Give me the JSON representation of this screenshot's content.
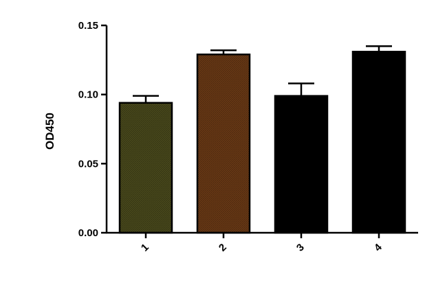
{
  "chart_data": {
    "type": "bar",
    "title": "",
    "xlabel": "",
    "ylabel": "OD450",
    "categories": [
      "1",
      "2",
      "3",
      "4"
    ],
    "values": [
      0.094,
      0.129,
      0.099,
      0.131
    ],
    "errors": [
      0.005,
      0.003,
      0.009,
      0.004
    ],
    "bar_colors": [
      "#4a4a1c",
      "#6b3a15",
      "#000000",
      "#000000"
    ],
    "ylim": [
      0,
      0.15
    ],
    "yticks": [
      "0.00",
      "0.05",
      "0.10",
      "0.15"
    ],
    "ytick_values": [
      0,
      0.05,
      0.1,
      0.15
    ],
    "grid": false,
    "legend": "none"
  }
}
